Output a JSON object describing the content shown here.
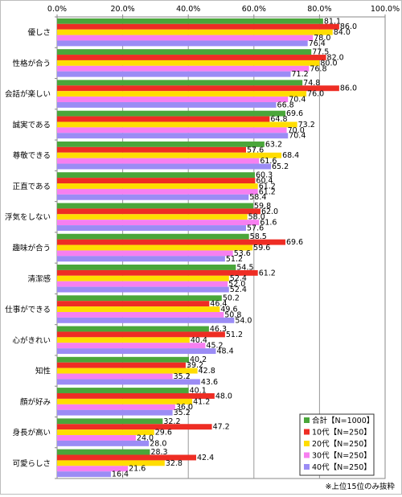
{
  "chart_data": {
    "type": "bar",
    "orientation": "horizontal",
    "xlim": [
      0,
      100
    ],
    "x_ticks": [
      "0.0%",
      "20.0%",
      "40.0%",
      "60.0%",
      "80.0%",
      "100.0%"
    ],
    "grid": true,
    "legend_position": "bottom-right",
    "categories": [
      "優しさ",
      "性格が合う",
      "会話が楽しい",
      "誠実である",
      "尊敬できる",
      "正直である",
      "浮気をしない",
      "趣味が合う",
      "清潔感",
      "仕事ができる",
      "心がきれい",
      "知性",
      "顔が好み",
      "身長が高い",
      "可愛らしさ"
    ],
    "series": [
      {
        "name": "合計【N=1000】",
        "color": "#4aa63a",
        "values": [
          81.1,
          77.5,
          74.8,
          69.6,
          63.2,
          60.3,
          59.8,
          58.5,
          54.5,
          50.2,
          46.3,
          40.2,
          40.1,
          32.2,
          28.3
        ]
      },
      {
        "name": "10代【N=250】",
        "color": "#ee2d24",
        "values": [
          86.0,
          82.0,
          86.0,
          64.8,
          57.6,
          60.4,
          62.0,
          69.6,
          61.2,
          46.4,
          51.2,
          39.2,
          48.0,
          47.2,
          42.4
        ]
      },
      {
        "name": "20代【N=250】",
        "color": "#ffdd00",
        "values": [
          84.0,
          80.0,
          76.0,
          73.2,
          68.4,
          61.2,
          58.0,
          59.6,
          52.4,
          49.6,
          40.4,
          42.8,
          41.2,
          29.6,
          32.8
        ]
      },
      {
        "name": "30代【N=250】",
        "color": "#f77ff0",
        "values": [
          78.0,
          76.8,
          70.4,
          70.0,
          61.6,
          61.2,
          61.6,
          53.6,
          52.0,
          50.8,
          45.2,
          35.2,
          36.0,
          24.0,
          21.6
        ]
      },
      {
        "name": "40代【N=250】",
        "color": "#9b8cf5",
        "values": [
          76.4,
          71.2,
          66.8,
          70.4,
          65.2,
          58.4,
          57.6,
          51.2,
          52.4,
          54.0,
          48.4,
          43.6,
          35.2,
          28.0,
          16.4
        ]
      }
    ]
  },
  "footnote": "※上位15位のみ抜粋"
}
